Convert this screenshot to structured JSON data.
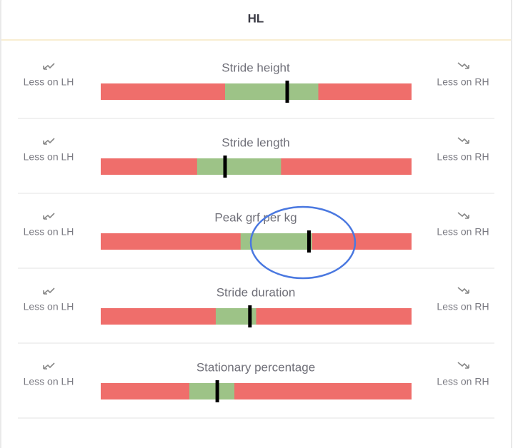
{
  "header": {
    "title": "HL"
  },
  "metrics": [
    {
      "label": "Stride height",
      "left": "Less on LH",
      "right": "Less on RH",
      "green": [
        40,
        70
      ],
      "marker": 60
    },
    {
      "label": "Stride length",
      "left": "Less on LH",
      "right": "Less on RH",
      "green": [
        31,
        58
      ],
      "marker": 40
    },
    {
      "label": "Peak grf per kg",
      "left": "Less on LH",
      "right": "Less on RH",
      "green": [
        45,
        68
      ],
      "marker": 67
    },
    {
      "label": "Stride duration",
      "left": "Less on LH",
      "right": "Less on RH",
      "green": [
        37,
        50
      ],
      "marker": 48
    },
    {
      "label": "Stationary percentage",
      "left": "Less on LH",
      "right": "Less on RH",
      "green": [
        28.5,
        43
      ],
      "marker": 37.5
    }
  ]
}
